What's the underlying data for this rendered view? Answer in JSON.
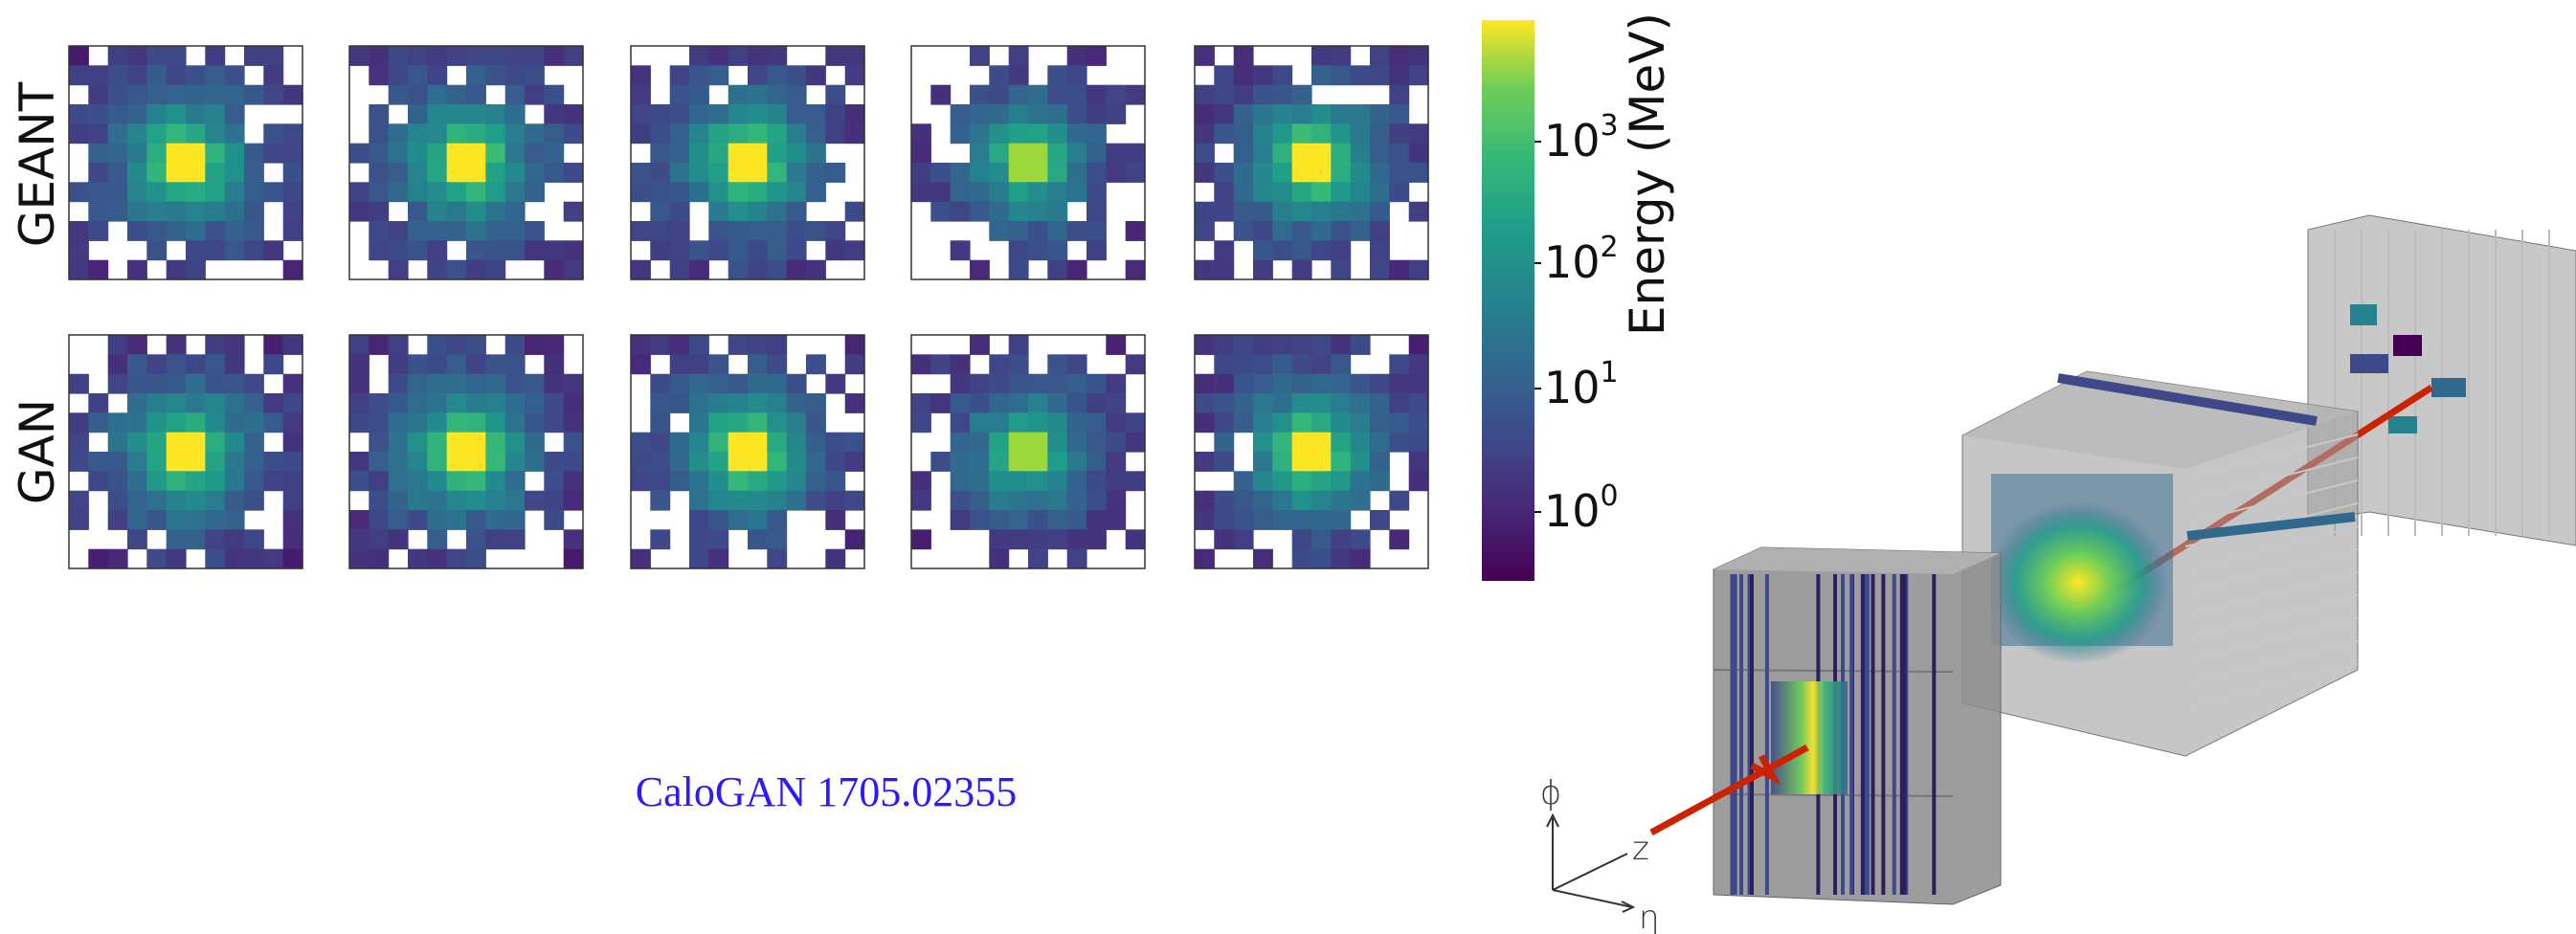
{
  "figure": {
    "row_labels": [
      "GEANT",
      "GAN"
    ],
    "colorbar": {
      "label": "Energy (MeV)",
      "ticks": [
        {
          "base": "10",
          "exponent": "3"
        },
        {
          "base": "10",
          "exponent": "2"
        },
        {
          "base": "10",
          "exponent": "1"
        },
        {
          "base": "10",
          "exponent": "0"
        }
      ]
    },
    "caption": "CaloGAN 1705.02355",
    "axes_labels": {
      "phi": "ϕ",
      "z": "z",
      "eta": "η"
    }
  }
}
